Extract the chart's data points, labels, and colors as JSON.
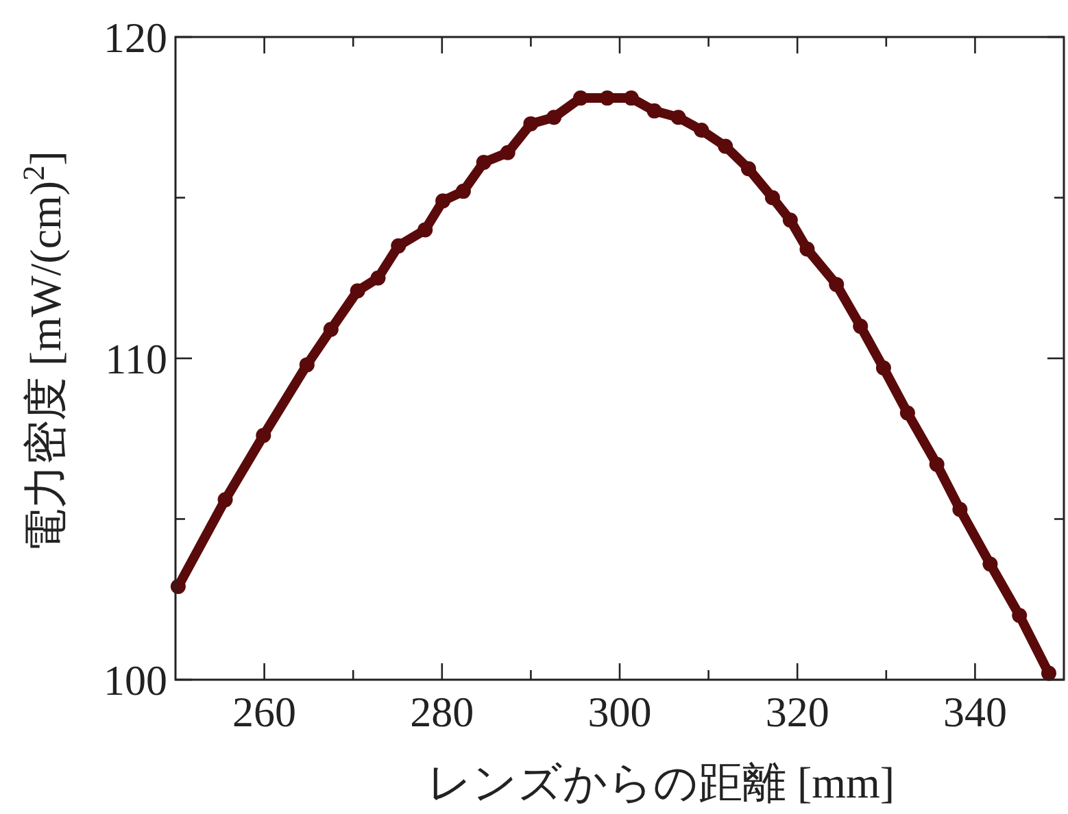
{
  "chart_data": {
    "type": "line",
    "xlabel": "レンズからの距離 [mm]",
    "ylabel": "電力密度 [mW/(cm)$^{2}$]",
    "xlim": [
      250,
      350
    ],
    "ylim": [
      100,
      120
    ],
    "xticks": [
      260,
      {
        "value": 270,
        "label": null
      },
      280,
      {
        "value": 290,
        "label": null
      },
      300,
      {
        "value": 310,
        "label": null
      },
      320,
      {
        "value": 330,
        "label": null
      },
      340
    ],
    "yticks": [
      100,
      {
        "value": 105,
        "label": null
      },
      110,
      {
        "value": 115,
        "label": null
      },
      120
    ],
    "grid": false,
    "marker": "circle",
    "line_style": "solid",
    "series": [
      {
        "color": "#5a0a0a",
        "x": [
          250.3,
          255.6,
          259.9,
          264.8,
          267.5,
          270.5,
          272.8,
          275.1,
          278.1,
          280.1,
          282.4,
          284.7,
          287.4,
          290.0,
          292.6,
          295.6,
          298.6,
          301.3,
          303.9,
          306.6,
          309.2,
          311.9,
          314.5,
          317.2,
          319.2,
          321.1,
          324.4,
          327.1,
          329.7,
          332.4,
          335.7,
          338.3,
          341.7,
          345.0,
          348.3
        ],
        "values": [
          102.9,
          105.6,
          107.6,
          109.8,
          110.9,
          112.1,
          112.5,
          113.5,
          114.0,
          114.9,
          115.2,
          116.1,
          116.4,
          117.3,
          117.5,
          118.1,
          118.1,
          118.1,
          117.7,
          117.5,
          117.1,
          116.6,
          115.9,
          115.0,
          114.3,
          113.4,
          112.3,
          111.0,
          109.7,
          108.3,
          106.7,
          105.3,
          103.6,
          102.0,
          100.2
        ]
      }
    ]
  }
}
